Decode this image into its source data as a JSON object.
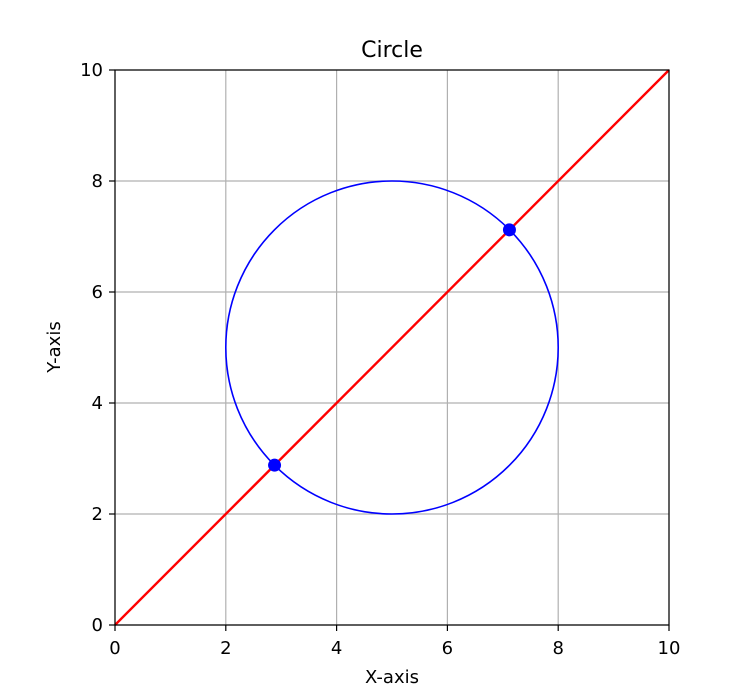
{
  "chart_data": {
    "type": "line",
    "title": "Circle",
    "xlabel": "X-axis",
    "ylabel": "Y-axis",
    "xlim": [
      0,
      10
    ],
    "ylim": [
      0,
      10
    ],
    "xticks": [
      0,
      2,
      4,
      6,
      8,
      10
    ],
    "yticks": [
      0,
      2,
      4,
      6,
      8,
      10
    ],
    "grid": true,
    "circle": {
      "center": [
        5,
        5
      ],
      "radius": 3,
      "color": "#0000ff"
    },
    "line": {
      "x": [
        0,
        10
      ],
      "y": [
        0,
        10
      ],
      "color": "#ff0000"
    },
    "intersections": {
      "color": "#0000ff",
      "points": [
        {
          "x": 2.88,
          "y": 2.88
        },
        {
          "x": 7.12,
          "y": 7.12
        }
      ]
    }
  }
}
